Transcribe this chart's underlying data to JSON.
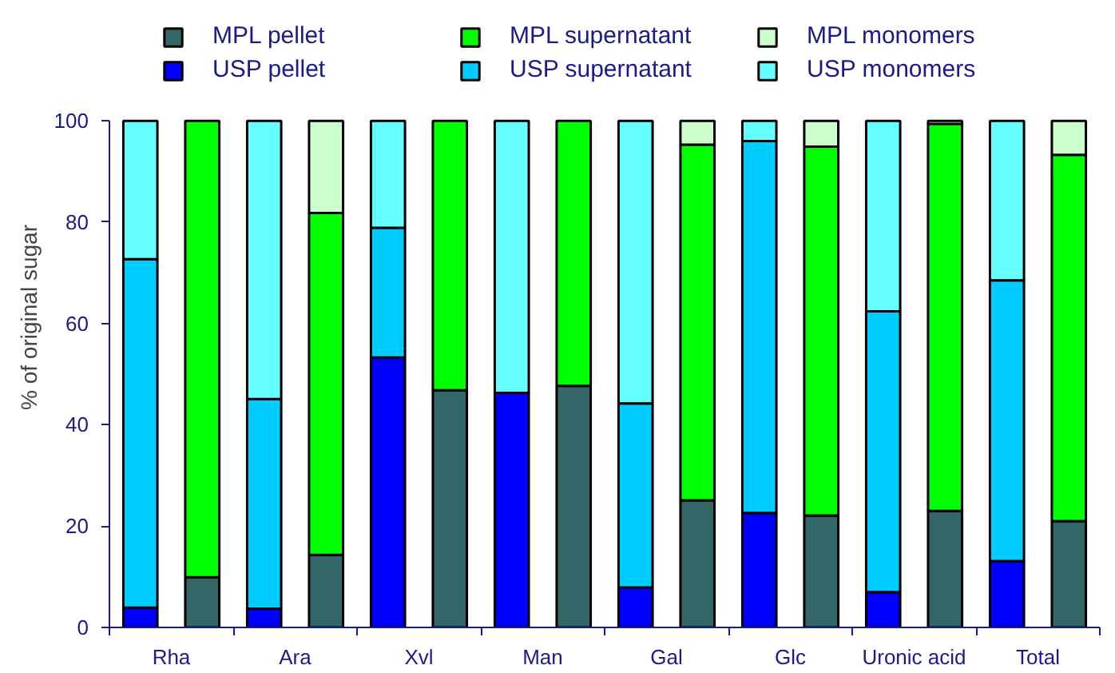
{
  "chart_data": {
    "type": "bar",
    "stacked": true,
    "ylabel": "% of original sugar",
    "categories": [
      "Rha",
      null,
      "Ara",
      null,
      "Xvl",
      null,
      "Man",
      null,
      "Gal",
      null,
      "Glc",
      null,
      "Uronic acid",
      null,
      "Total",
      null
    ],
    "series": [
      {
        "name": "MPL pellet",
        "color": "#336666",
        "values": [
          null,
          9.9,
          null,
          14.3,
          null,
          46.8,
          null,
          47.7,
          null,
          25.1,
          null,
          22.1,
          null,
          23.0,
          null,
          21.0
        ]
      },
      {
        "name": "MPL supernatant",
        "color": "#00ff00",
        "values": [
          null,
          90.1,
          null,
          67.5,
          null,
          53.2,
          null,
          52.3,
          null,
          70.2,
          null,
          72.8,
          null,
          76.4,
          null,
          72.3
        ]
      },
      {
        "name": "MPL monomers",
        "color": "#ccffcc",
        "values": [
          null,
          null,
          null,
          18.2,
          null,
          null,
          null,
          null,
          null,
          4.7,
          null,
          5.1,
          null,
          0.6,
          null,
          6.7
        ]
      },
      {
        "name": "USP pellet",
        "color": "#0000ff",
        "values": [
          3.9,
          null,
          3.7,
          null,
          53.3,
          null,
          46.3,
          null,
          7.9,
          null,
          22.6,
          null,
          7.0,
          null,
          13.1,
          null
        ]
      },
      {
        "name": "USP supernatant",
        "color": "#00ccff",
        "values": [
          68.8,
          null,
          41.4,
          null,
          25.6,
          null,
          null,
          null,
          36.3,
          null,
          73.4,
          null,
          55.4,
          null,
          55.4,
          null
        ]
      },
      {
        "name": "USP monomers",
        "color": "#66ffff",
        "values": [
          27.3,
          null,
          54.9,
          null,
          21.1,
          null,
          53.7,
          null,
          55.8,
          null,
          4.0,
          null,
          37.6,
          null,
          31.5,
          null
        ]
      }
    ],
    "ylim": [
      0,
      100
    ],
    "yticks": [
      0,
      20,
      40,
      60,
      80,
      100
    ],
    "grid": false,
    "legend": "top"
  }
}
